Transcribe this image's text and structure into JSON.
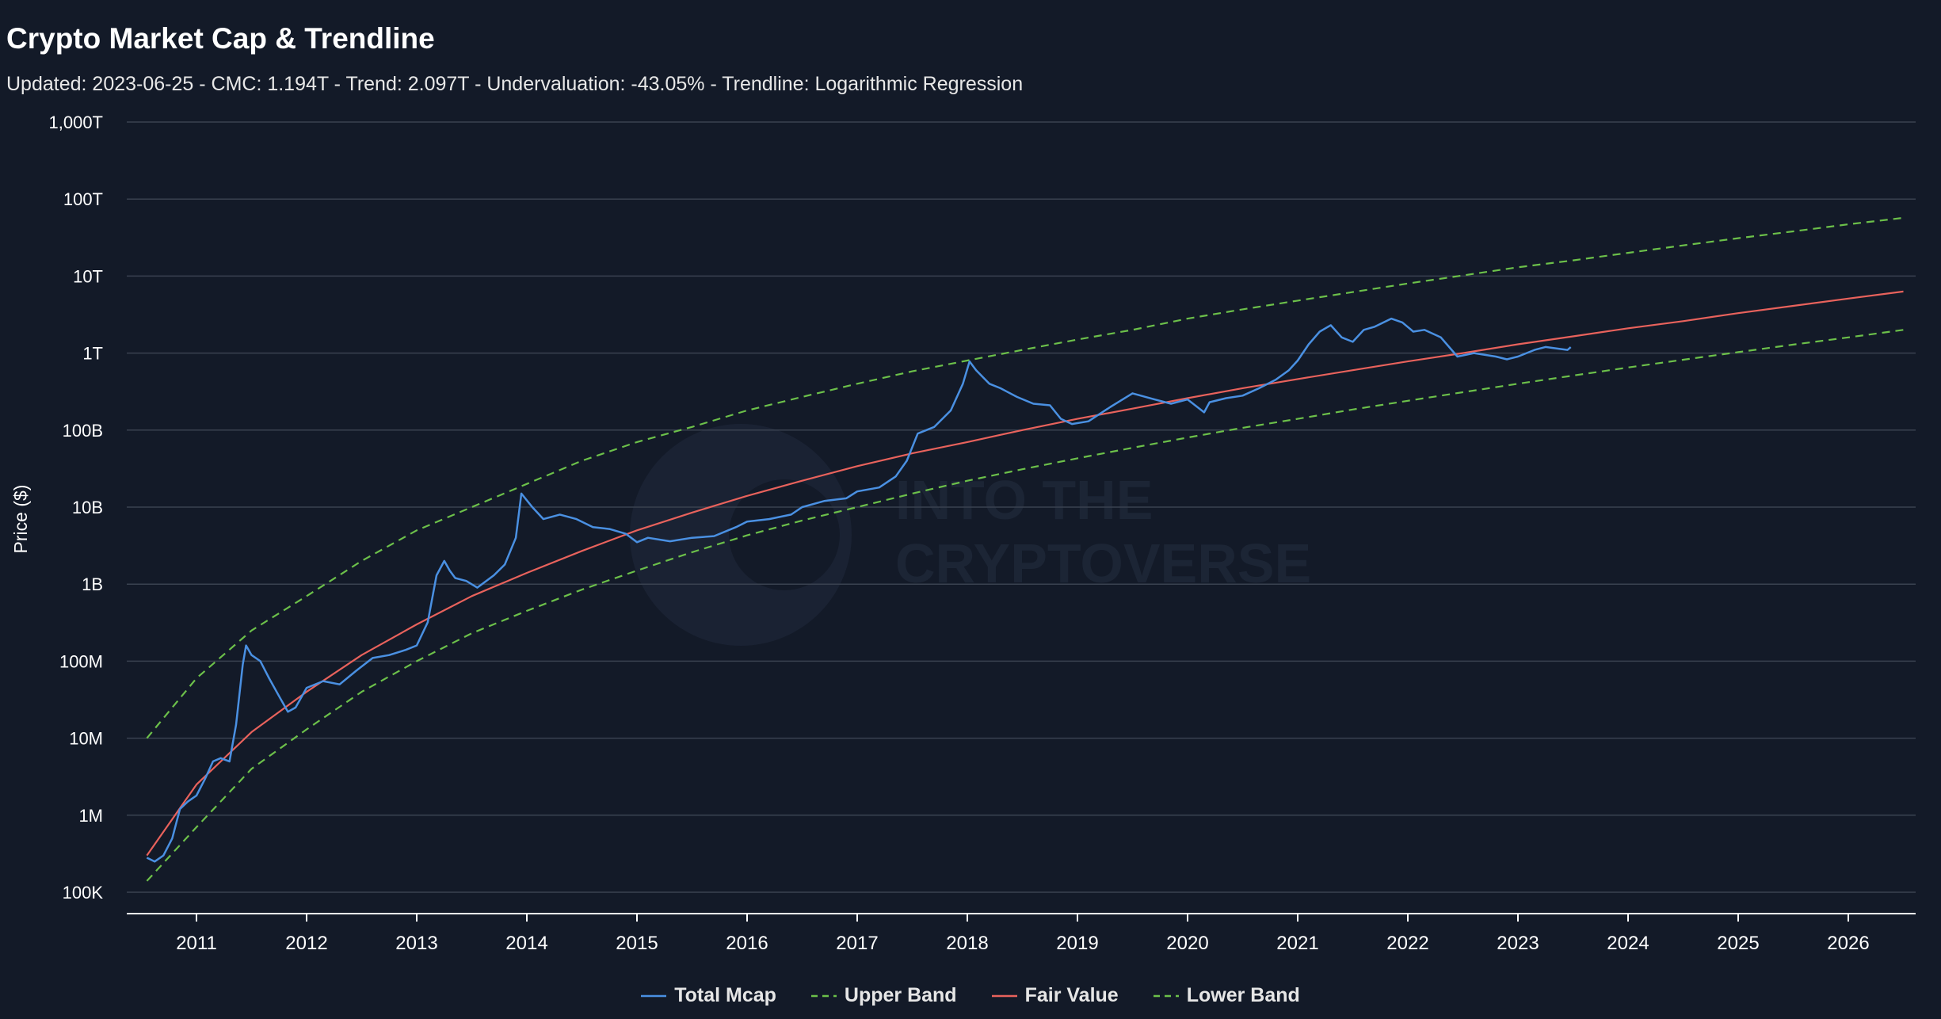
{
  "title": "Crypto Market Cap & Trendline",
  "subtitle": "Updated: 2023-06-25 - CMC: 1.194T - Trend: 2.097T - Undervaluation: -43.05% - Trendline: Logarithmic Regression",
  "watermark": {
    "line1": "INTO THE",
    "line2": "CRYPTOVERSE"
  },
  "chart_data": {
    "type": "line",
    "title": "Crypto Market Cap & Trendline",
    "ylabel": "Price ($)",
    "xlabel": "",
    "y_scale": "log",
    "ylim": [
      100000,
      1000000000000000
    ],
    "xlim": [
      2010.55,
      2026.6
    ],
    "y_ticks": [
      {
        "value": 100000,
        "label": "100K"
      },
      {
        "value": 1000000,
        "label": "1M"
      },
      {
        "value": 10000000,
        "label": "10M"
      },
      {
        "value": 100000000,
        "label": "100M"
      },
      {
        "value": 1000000000,
        "label": "1B"
      },
      {
        "value": 10000000000,
        "label": "10B"
      },
      {
        "value": 100000000000,
        "label": "100B"
      },
      {
        "value": 1000000000000,
        "label": "1T"
      },
      {
        "value": 10000000000000,
        "label": "10T"
      },
      {
        "value": 100000000000000,
        "label": "100T"
      },
      {
        "value": 1000000000000000,
        "label": "1,000T"
      }
    ],
    "x_ticks": [
      "2011",
      "2012",
      "2013",
      "2014",
      "2015",
      "2016",
      "2017",
      "2018",
      "2019",
      "2020",
      "2021",
      "2022",
      "2023",
      "2024",
      "2025",
      "2026"
    ],
    "grid": true,
    "legend_position": "bottom-center",
    "colors": {
      "total_mcap": "#4a90e2",
      "upper_band": "#6cc04a",
      "fair_value": "#e8625c",
      "lower_band": "#6cc04a",
      "grid": "#3a4250",
      "axis": "#ffffff"
    },
    "series": [
      {
        "name": "Total Mcap",
        "style": "solid",
        "x": [
          2010.55,
          2010.62,
          2010.7,
          2010.78,
          2010.85,
          2010.92,
          2011.0,
          2011.08,
          2011.15,
          2011.22,
          2011.3,
          2011.36,
          2011.42,
          2011.45,
          2011.5,
          2011.58,
          2011.66,
          2011.75,
          2011.83,
          2011.9,
          2012.0,
          2012.15,
          2012.3,
          2012.45,
          2012.6,
          2012.75,
          2012.9,
          2013.0,
          2013.1,
          2013.18,
          2013.25,
          2013.3,
          2013.35,
          2013.45,
          2013.55,
          2013.7,
          2013.8,
          2013.9,
          2013.95,
          2014.05,
          2014.15,
          2014.3,
          2014.45,
          2014.6,
          2014.75,
          2014.9,
          2015.0,
          2015.1,
          2015.3,
          2015.5,
          2015.7,
          2015.9,
          2016.0,
          2016.2,
          2016.4,
          2016.5,
          2016.7,
          2016.9,
          2017.0,
          2017.2,
          2017.35,
          2017.45,
          2017.55,
          2017.7,
          2017.85,
          2017.96,
          2018.02,
          2018.08,
          2018.2,
          2018.3,
          2018.45,
          2018.6,
          2018.75,
          2018.85,
          2018.95,
          2019.1,
          2019.3,
          2019.5,
          2019.7,
          2019.85,
          2020.0,
          2020.15,
          2020.2,
          2020.35,
          2020.5,
          2020.65,
          2020.8,
          2020.92,
          2021.0,
          2021.1,
          2021.2,
          2021.3,
          2021.4,
          2021.5,
          2021.6,
          2021.7,
          2021.85,
          2021.95,
          2022.05,
          2022.15,
          2022.3,
          2022.45,
          2022.6,
          2022.8,
          2022.9,
          2023.0,
          2023.15,
          2023.25,
          2023.35,
          2023.45,
          2023.48
        ],
        "values": [
          280000,
          250000,
          300000,
          500000,
          1200000,
          1500000,
          1800000,
          3000000,
          5000000,
          5500000,
          5000000,
          15000000,
          90000000,
          160000000,
          120000000,
          100000000,
          60000000,
          35000000,
          22000000,
          25000000,
          45000000,
          55000000,
          50000000,
          75000000,
          110000000,
          120000000,
          140000000,
          160000000,
          320000000,
          1300000000,
          2000000000,
          1500000000,
          1200000000,
          1100000000,
          900000000,
          1300000000,
          1800000000,
          4000000000,
          15000000000,
          10000000000,
          7000000000,
          8000000000,
          7000000000,
          5500000000,
          5200000000,
          4500000000,
          3500000000,
          4000000000,
          3600000000,
          4000000000,
          4200000000,
          5500000000,
          6500000000,
          7000000000,
          8000000000,
          10000000000,
          12000000000,
          13000000000,
          16000000000,
          18000000000,
          25000000000,
          40000000000,
          90000000000,
          110000000000,
          180000000000,
          400000000000,
          780000000000,
          600000000000,
          400000000000,
          350000000000,
          270000000000,
          220000000000,
          210000000000,
          140000000000,
          120000000000,
          130000000000,
          200000000000,
          300000000000,
          250000000000,
          220000000000,
          250000000000,
          170000000000,
          230000000000,
          260000000000,
          280000000000,
          350000000000,
          450000000000,
          600000000000,
          800000000000,
          1300000000000,
          1900000000000,
          2300000000000,
          1600000000000,
          1400000000000,
          2000000000000,
          2200000000000,
          2800000000000,
          2500000000000,
          1900000000000,
          2000000000000,
          1600000000000,
          900000000000,
          1000000000000,
          900000000000,
          830000000000,
          900000000000,
          1100000000000,
          1200000000000,
          1150000000000,
          1100000000000,
          1194000000000
        ]
      },
      {
        "name": "Upper Band",
        "style": "dashed",
        "x": [
          2010.55,
          2011.0,
          2011.5,
          2012.0,
          2012.5,
          2013.0,
          2013.5,
          2014.0,
          2014.5,
          2015.0,
          2015.5,
          2016.0,
          2016.5,
          2017.0,
          2017.5,
          2018.0,
          2018.5,
          2019.0,
          2019.5,
          2020.0,
          2020.5,
          2021.0,
          2021.5,
          2022.0,
          2022.5,
          2023.0,
          2023.5,
          2024.0,
          2024.5,
          2025.0,
          2025.5,
          2026.0,
          2026.5
        ],
        "values": [
          10000000,
          60000000,
          250000000,
          700000000,
          2000000000,
          5000000000,
          10000000000,
          20000000000,
          40000000000,
          70000000000,
          110000000000,
          180000000000,
          270000000000,
          400000000000,
          580000000000,
          800000000000,
          1100000000000,
          1500000000000,
          2000000000000,
          2800000000000,
          3700000000000,
          4800000000000,
          6200000000000,
          8000000000000,
          10200000000000,
          13000000000000,
          16000000000000,
          20000000000000,
          25000000000000,
          31000000000000,
          38000000000000,
          47000000000000,
          57000000000000
        ]
      },
      {
        "name": "Fair Value",
        "style": "solid",
        "x": [
          2010.55,
          2011.0,
          2011.5,
          2012.0,
          2012.5,
          2013.0,
          2013.5,
          2014.0,
          2014.5,
          2015.0,
          2015.5,
          2016.0,
          2016.5,
          2017.0,
          2017.5,
          2018.0,
          2018.5,
          2019.0,
          2019.5,
          2020.0,
          2020.5,
          2021.0,
          2021.5,
          2022.0,
          2022.5,
          2023.0,
          2023.5,
          2024.0,
          2024.5,
          2025.0,
          2025.5,
          2026.0,
          2026.5
        ],
        "values": [
          300000,
          2500000,
          12000000,
          40000000,
          120000000,
          300000000,
          700000000,
          1400000000,
          2700000000,
          5000000000,
          8500000000,
          14000000000,
          22000000000,
          34000000000,
          50000000000,
          70000000000,
          100000000000,
          140000000000,
          190000000000,
          260000000000,
          350000000000,
          460000000000,
          600000000000,
          780000000000,
          1000000000000,
          1300000000000,
          1650000000000,
          2100000000000,
          2600000000000,
          3300000000000,
          4100000000000,
          5100000000000,
          6300000000000
        ]
      },
      {
        "name": "Lower Band",
        "style": "dashed",
        "x": [
          2010.55,
          2011.0,
          2011.5,
          2012.0,
          2012.5,
          2013.0,
          2013.5,
          2014.0,
          2014.5,
          2015.0,
          2015.5,
          2016.0,
          2016.5,
          2017.0,
          2017.5,
          2018.0,
          2018.5,
          2019.0,
          2019.5,
          2020.0,
          2020.5,
          2021.0,
          2021.5,
          2022.0,
          2022.5,
          2023.0,
          2023.5,
          2024.0,
          2024.5,
          2025.0,
          2025.5,
          2026.0,
          2026.5
        ],
        "values": [
          140000,
          700000,
          4000000,
          13000000,
          40000000,
          100000000,
          230000000,
          450000000,
          850000000,
          1500000000,
          2600000000,
          4300000000,
          6700000000,
          10000000000,
          15000000000,
          22000000000,
          31000000000,
          43000000000,
          59000000000,
          80000000000,
          107000000000,
          140000000000,
          185000000000,
          240000000000,
          310000000000,
          400000000000,
          510000000000,
          650000000000,
          820000000000,
          1030000000000,
          1290000000000,
          1600000000000,
          2000000000000
        ]
      }
    ]
  }
}
